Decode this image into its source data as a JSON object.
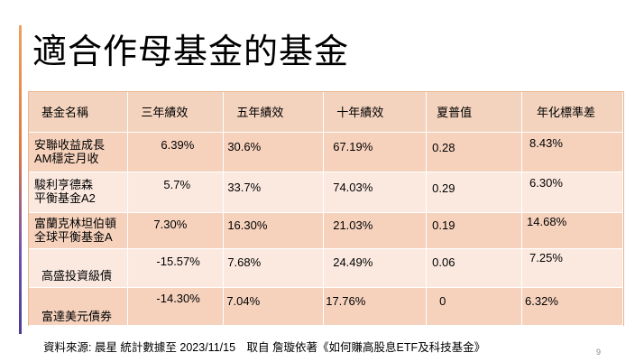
{
  "slide": {
    "title": "適合作母基金的基金",
    "page_number": "9",
    "footnote": "資料來源: 晨星 統計數據至 2023/11/15　取自 詹璇依著《如何賺高股息ETF及科技基金》"
  },
  "table": {
    "headers": [
      "基金名稱",
      "三年績效",
      "五年績效",
      "十年績效",
      "夏普值",
      "年化標準差"
    ],
    "rows": [
      {
        "name": [
          "安聯收益成長",
          "AM穩定月收"
        ],
        "three_year": "6.39%",
        "five_year": "30.6%",
        "ten_year": "67.19%",
        "sharpe": "0.28",
        "std_dev": "8.43%"
      },
      {
        "name": [
          "駿利亨德森",
          "平衡基金A2"
        ],
        "three_year": "5.7%",
        "five_year": "33.7%",
        "ten_year": "74.03%",
        "sharpe": "0.29",
        "std_dev": "6.30%"
      },
      {
        "name": [
          "富蘭克林坦伯頓",
          "全球平衡基金A"
        ],
        "three_year": "7.30%",
        "five_year": "16.30%",
        "ten_year": "21.03%",
        "sharpe": "0.19",
        "std_dev": "14.68%"
      },
      {
        "name": [
          "高盛投資級債"
        ],
        "three_year": "-15.57%",
        "five_year": "7.68%",
        "ten_year": "24.49%",
        "sharpe": "0.06",
        "std_dev": "7.25%"
      },
      {
        "name": [
          "富達美元債券"
        ],
        "three_year": "-14.30%",
        "five_year": "7.04%",
        "ten_year": "17.76%",
        "sharpe": "0",
        "std_dev": "6.32%"
      }
    ]
  },
  "colors": {
    "header_fill": "#f4d3be",
    "row_dark": "#f6d2bd",
    "row_light": "#fbe9e0",
    "table_border": "#e9b58f",
    "accent_top": "#e07840",
    "accent_bottom": "#4b3a9a"
  }
}
